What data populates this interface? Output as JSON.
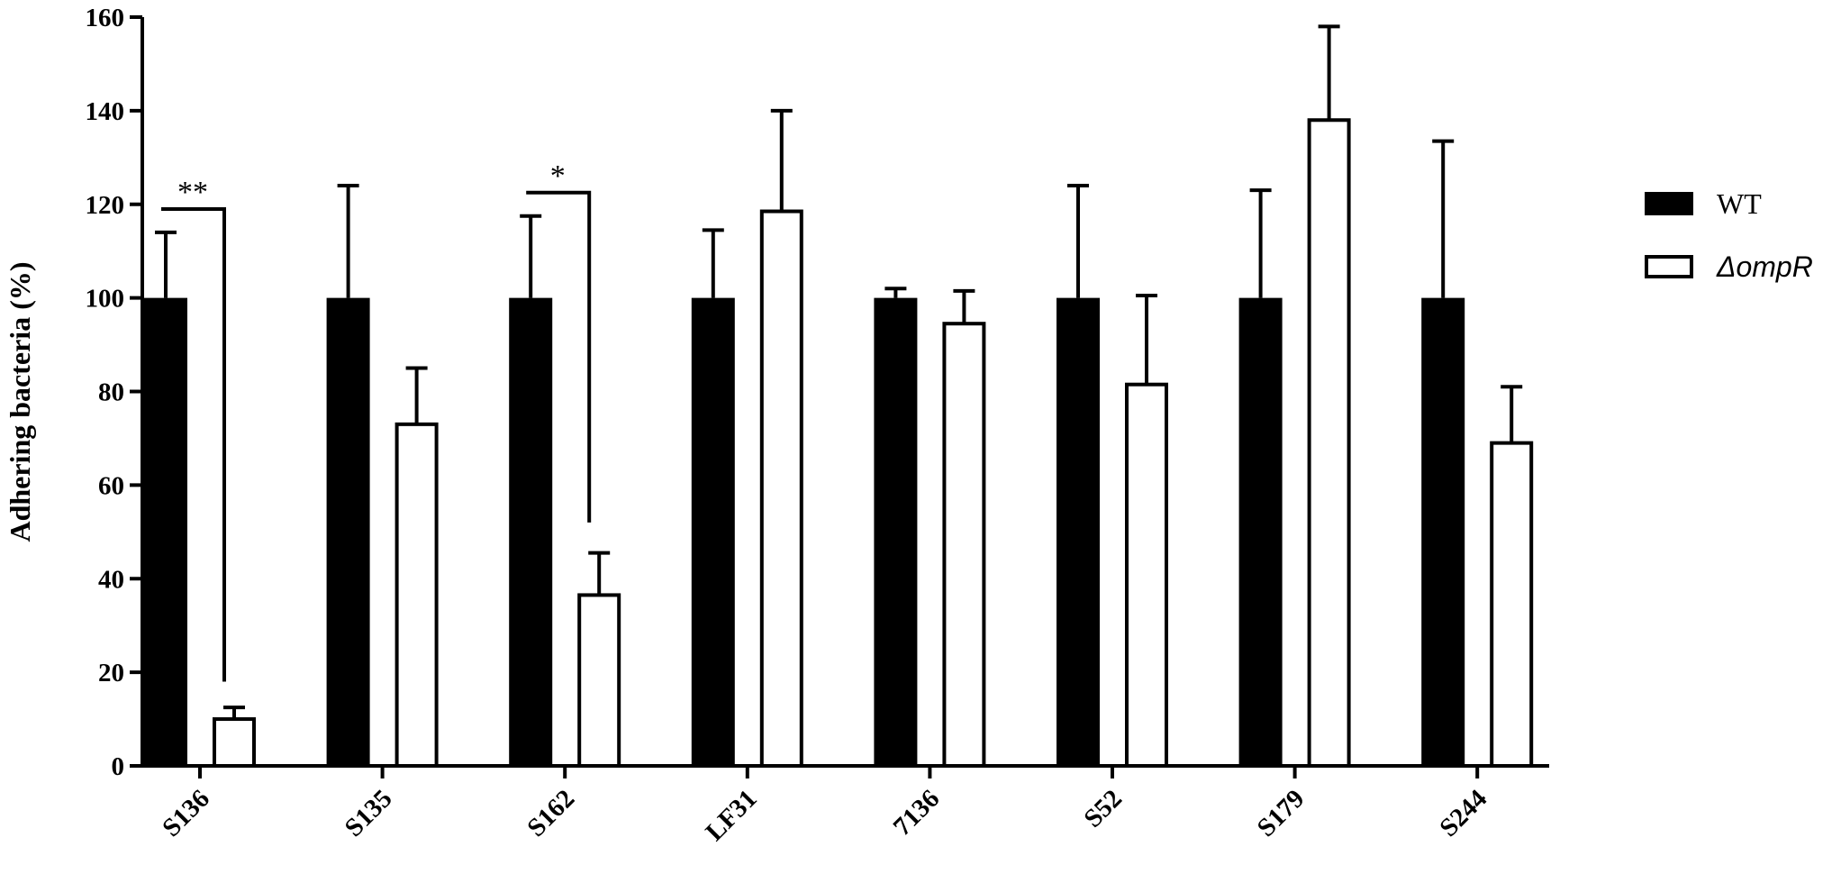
{
  "chart_data": {
    "type": "bar",
    "title": "",
    "xlabel": "",
    "ylabel": "Adhering bacteria (%)",
    "ylim": [
      0,
      160
    ],
    "yticks": [
      0,
      20,
      40,
      60,
      80,
      100,
      120,
      140,
      160
    ],
    "categories": [
      "S136",
      "S135",
      "S162",
      "LF31",
      "7136",
      "S52",
      "S179",
      "S244"
    ],
    "series": [
      {
        "name": "WT",
        "color": "#000000",
        "fill": "solid",
        "values": [
          100,
          100,
          100,
          100,
          100,
          100,
          100,
          100
        ],
        "errors": [
          14,
          24,
          17.5,
          14.5,
          2,
          24,
          23,
          33.5
        ]
      },
      {
        "name": "ΔompR",
        "color": "#ffffff",
        "fill": "hollow",
        "values": [
          10,
          73,
          36.5,
          118.5,
          94.5,
          81.5,
          138,
          69
        ],
        "errors": [
          2.5,
          12,
          9,
          21.5,
          7,
          19,
          20,
          12
        ]
      }
    ],
    "significance": [
      {
        "category": "S136",
        "label": "**"
      },
      {
        "category": "S162",
        "label": "*"
      }
    ],
    "legend": {
      "placement": "right",
      "entries": [
        {
          "label": "WT",
          "style": "normal"
        },
        {
          "label": "ΔompR",
          "style": "italic"
        }
      ]
    },
    "grid": false
  }
}
